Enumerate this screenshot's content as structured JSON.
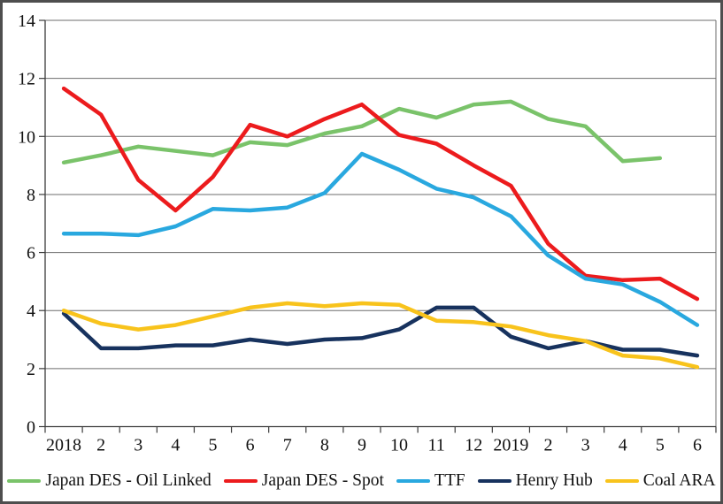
{
  "chart_data": {
    "type": "line",
    "title": "",
    "xlabel": "",
    "ylabel": "",
    "categories": [
      "2018",
      "2",
      "3",
      "4",
      "5",
      "6",
      "7",
      "8",
      "9",
      "10",
      "11",
      "12",
      "2019",
      "2",
      "3",
      "4",
      "5",
      "6"
    ],
    "series": [
      {
        "name": "Japan DES - Oil Linked",
        "color": "#7AC36A",
        "values": [
          9.1,
          9.35,
          9.65,
          9.5,
          9.35,
          9.8,
          9.7,
          10.1,
          10.35,
          10.95,
          10.65,
          11.1,
          11.2,
          10.6,
          10.35,
          9.15,
          9.25,
          null
        ]
      },
      {
        "name": "Japan DES - Spot",
        "color": "#EC1B1D",
        "values": [
          11.65,
          10.75,
          8.5,
          7.45,
          8.6,
          10.4,
          10.0,
          10.6,
          11.1,
          10.05,
          9.75,
          9.0,
          8.3,
          6.3,
          5.2,
          5.05,
          5.1,
          4.4
        ]
      },
      {
        "name": "TTF",
        "color": "#29A8DF",
        "values": [
          6.65,
          6.65,
          6.6,
          6.9,
          7.5,
          7.45,
          7.55,
          8.05,
          9.4,
          8.85,
          8.2,
          7.9,
          7.25,
          5.9,
          5.1,
          4.9,
          4.3,
          3.5
        ]
      },
      {
        "name": "Henry Hub",
        "color": "#17325E",
        "values": [
          3.9,
          2.7,
          2.7,
          2.8,
          2.8,
          3.0,
          2.85,
          3.0,
          3.05,
          3.35,
          4.1,
          4.1,
          3.1,
          2.7,
          2.95,
          2.65,
          2.65,
          2.45
        ]
      },
      {
        "name": "Coal ARA",
        "color": "#F8C31C",
        "values": [
          4.0,
          3.55,
          3.35,
          3.5,
          3.8,
          4.1,
          4.25,
          4.15,
          4.25,
          4.2,
          3.65,
          3.6,
          3.45,
          3.15,
          2.95,
          2.45,
          2.35,
          2.05
        ]
      }
    ],
    "yticks": [
      0,
      2,
      4,
      6,
      8,
      10,
      12,
      14
    ],
    "ylim": [
      0,
      14
    ],
    "grid": "horizontal",
    "grid_color": "#6e6e6e",
    "axis_color": "#3c3c3c",
    "legend_position": "bottom"
  }
}
